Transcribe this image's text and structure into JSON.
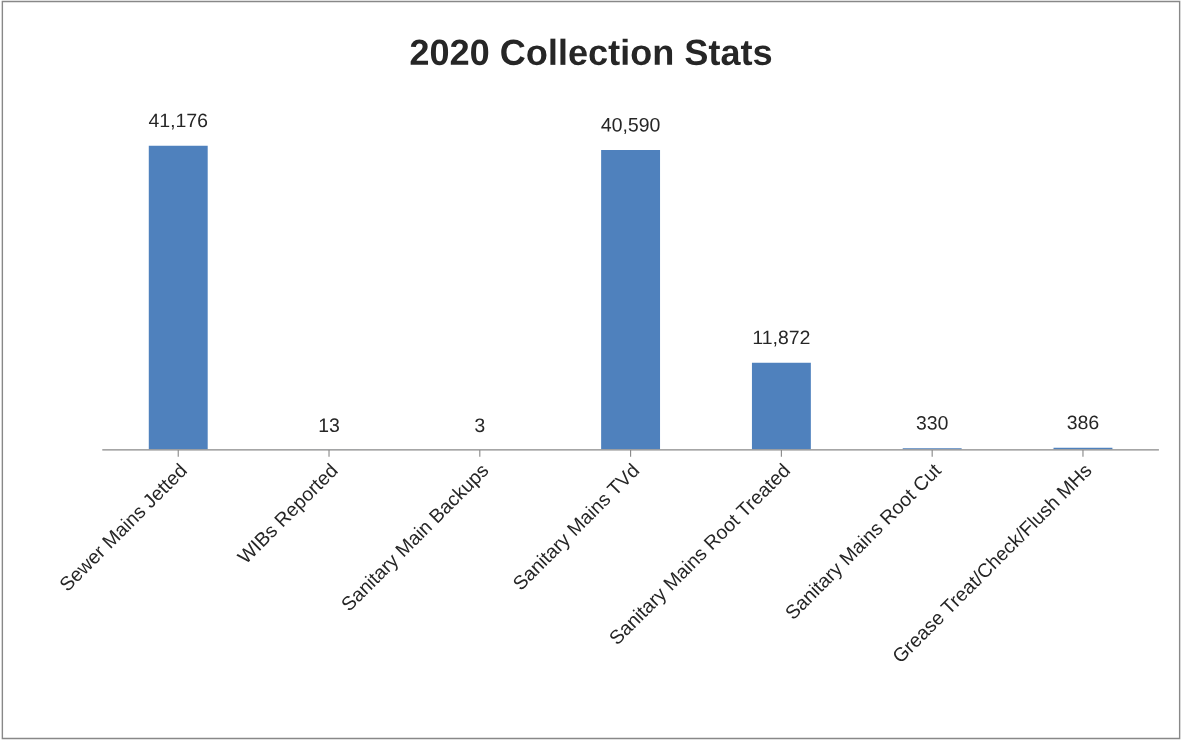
{
  "chart_data": {
    "type": "bar",
    "title": "2020 Collection Stats",
    "categories": [
      "Sewer Mains Jetted",
      "WIBs Reported",
      "Sanitary Main Backups",
      "Sanitary Mains TVd",
      "Sanitary Mains Root Treated",
      "Sanitary Mains Root Cut",
      "Grease Treat/Check/Flush MHs"
    ],
    "values": [
      41176,
      13,
      3,
      40590,
      11872,
      330,
      386
    ],
    "value_labels": [
      "41,176",
      "13",
      "3",
      "40,590",
      "11,872",
      "330",
      "386"
    ],
    "color": "#4f81bd",
    "grid": false,
    "legend": false
  }
}
